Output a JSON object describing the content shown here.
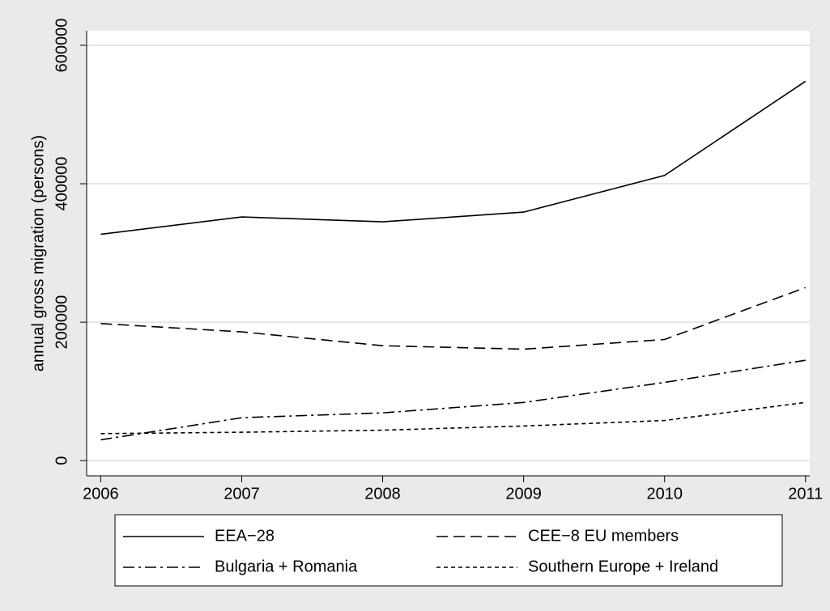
{
  "chart_data": {
    "type": "line",
    "y_label": "annual gross migration (persons)",
    "x": [
      2006,
      2007,
      2008,
      2009,
      2010,
      2011
    ],
    "series": [
      {
        "name": "EEA−28",
        "color": "#000000",
        "style": "solid",
        "values": [
          327000,
          352000,
          345000,
          359000,
          412000,
          548000
        ]
      },
      {
        "name": "CEE−8 EU members",
        "color": "#000000",
        "style": "dash",
        "values": [
          198000,
          186000,
          166000,
          161000,
          175000,
          250000
        ]
      },
      {
        "name": "Bulgaria + Romania",
        "color": "#000000",
        "style": "dashdot",
        "values": [
          30000,
          62000,
          69000,
          84000,
          113000,
          145000
        ]
      },
      {
        "name": "Southern Europe + Ireland",
        "color": "#000000",
        "style": "dot",
        "values": [
          39000,
          41000,
          44000,
          50000,
          58000,
          84000
        ]
      }
    ],
    "xlim": [
      2005.9,
      2011.03
    ],
    "xticks": [
      2006,
      2007,
      2008,
      2009,
      2010,
      2011
    ],
    "ylim": [
      -22000,
      621000
    ],
    "yticks": [
      0,
      200000,
      400000,
      600000
    ],
    "grid": true,
    "legend": "bottom"
  }
}
